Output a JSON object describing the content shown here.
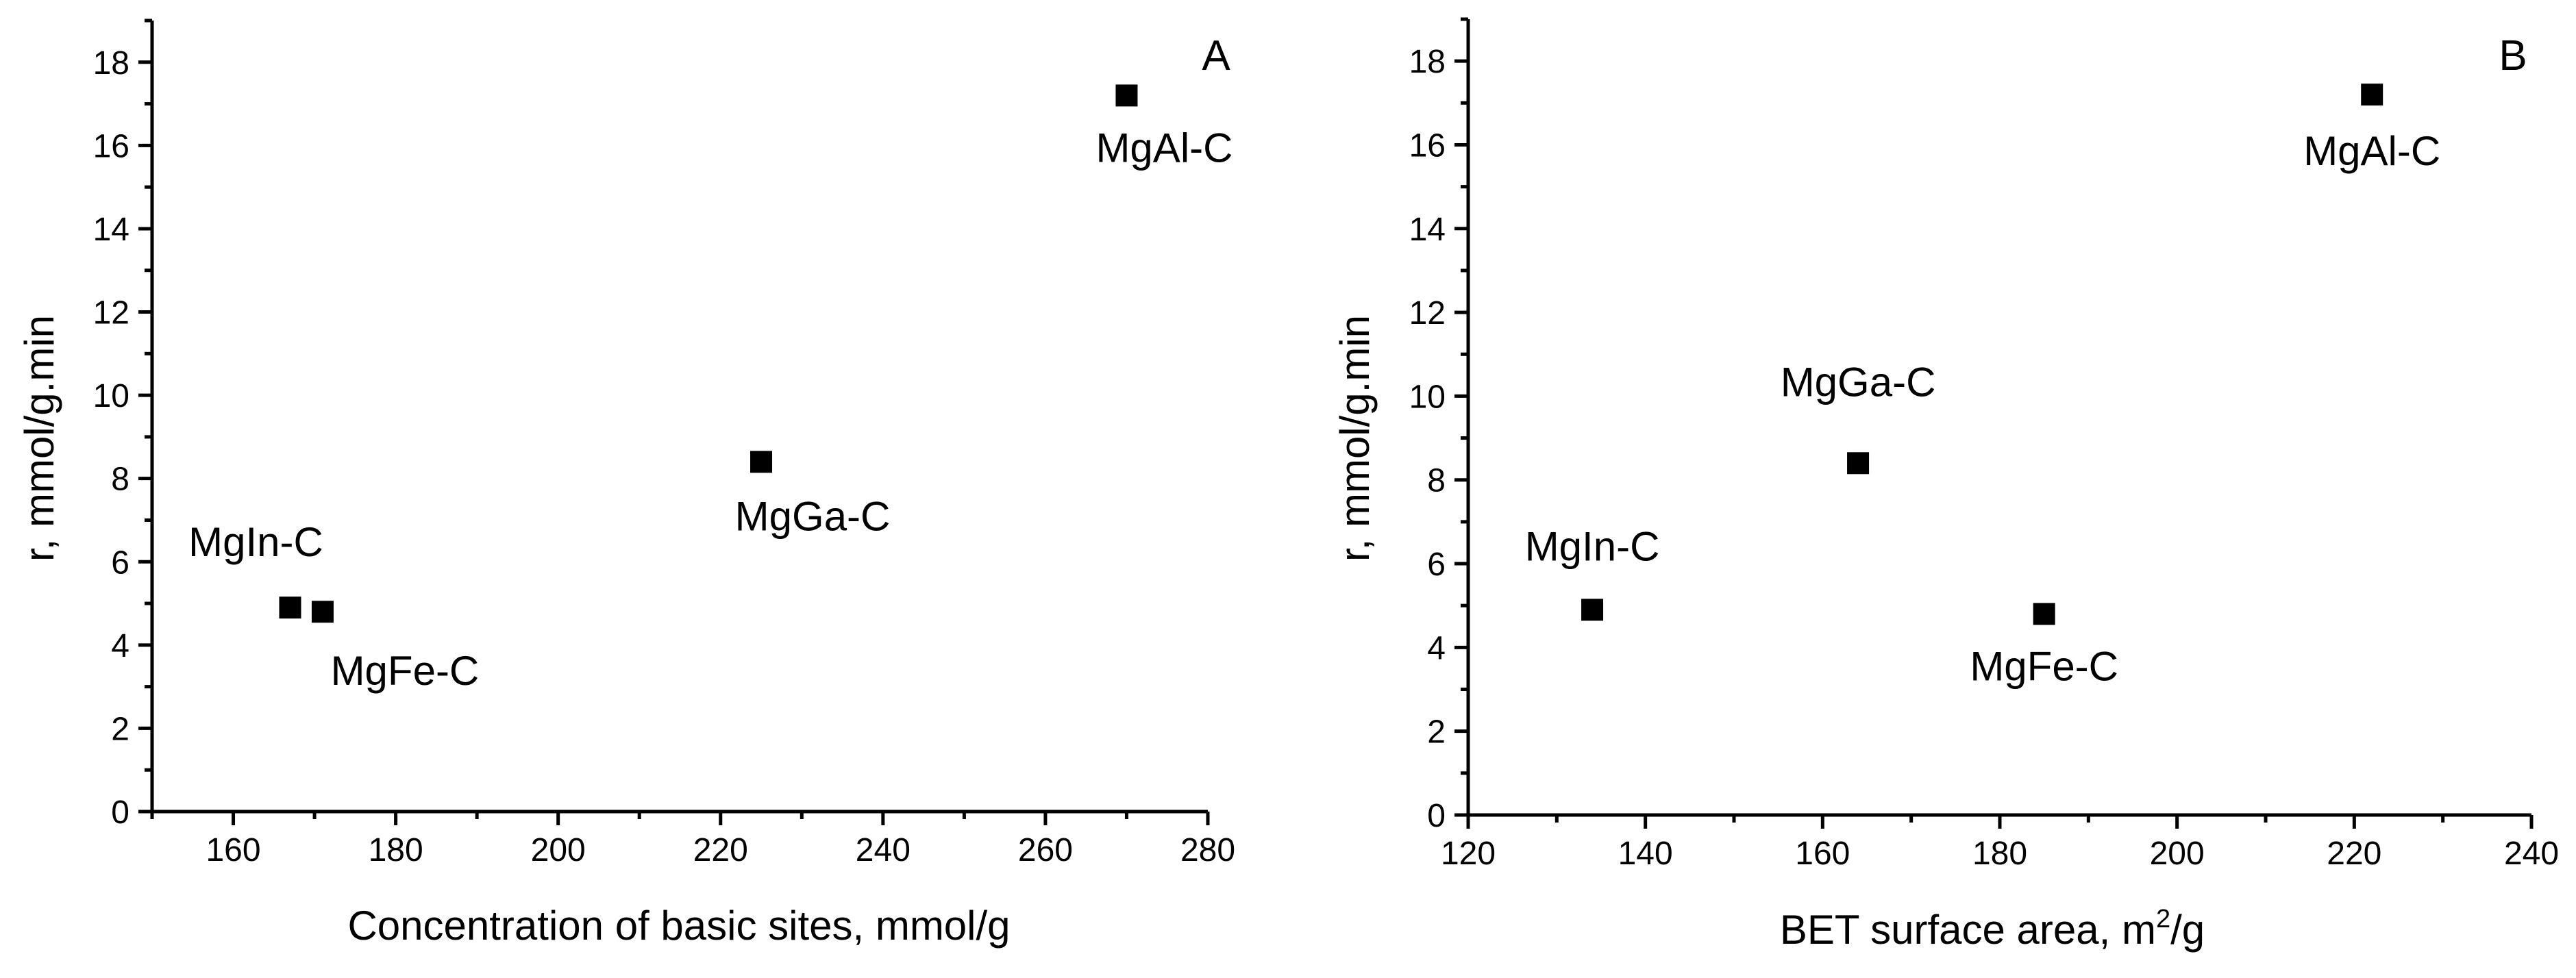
{
  "chart_data": [
    {
      "type": "scatter",
      "panel_label": "A",
      "title": "",
      "xlabel": "Concentration of basic sites, mmol/g",
      "ylabel": "r, mmol/g.min",
      "xlim": [
        150,
        280
      ],
      "ylim": [
        0,
        19
      ],
      "x_ticks": [
        160,
        180,
        200,
        220,
        240,
        260,
        280
      ],
      "y_ticks": [
        0,
        2,
        4,
        6,
        8,
        10,
        12,
        14,
        16,
        18
      ],
      "marker": "filled-square",
      "marker_color": "#000000",
      "points": [
        {
          "label": "MgIn-C",
          "x": 167,
          "y": 4.9
        },
        {
          "label": "MgFe-C",
          "x": 171,
          "y": 4.8
        },
        {
          "label": "MgGa-C",
          "x": 225,
          "y": 8.4
        },
        {
          "label": "MgAl-C",
          "x": 270,
          "y": 17.2
        }
      ]
    },
    {
      "type": "scatter",
      "panel_label": "B",
      "title": "",
      "xlabel_main": "BET surface area, m",
      "xlabel_sup": "2",
      "xlabel_tail": "/g",
      "ylabel": "r, mmol/g.min",
      "xlim": [
        120,
        240
      ],
      "ylim": [
        0,
        19
      ],
      "x_ticks": [
        120,
        140,
        160,
        180,
        200,
        220,
        240
      ],
      "y_ticks": [
        0,
        2,
        4,
        6,
        8,
        10,
        12,
        14,
        16,
        18
      ],
      "marker": "filled-square",
      "marker_color": "#000000",
      "points": [
        {
          "label": "MgIn-C",
          "x": 134,
          "y": 4.9
        },
        {
          "label": "MgGa-C",
          "x": 164,
          "y": 8.4
        },
        {
          "label": "MgFe-C",
          "x": 185,
          "y": 4.8
        },
        {
          "label": "MgAl-C",
          "x": 222,
          "y": 17.2
        }
      ]
    }
  ]
}
